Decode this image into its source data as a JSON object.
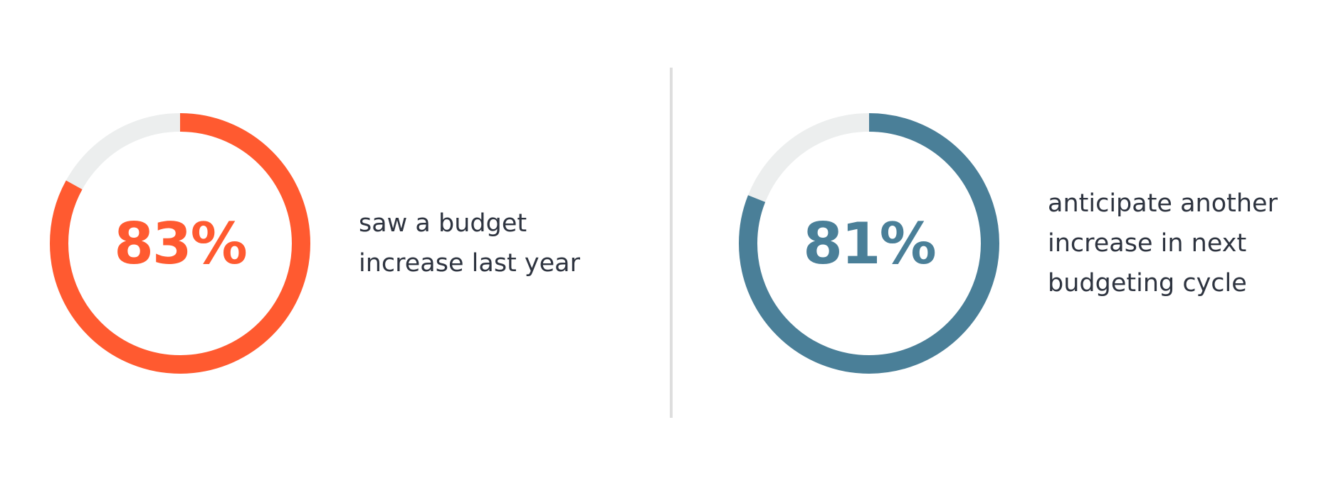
{
  "chart_data": [
    {
      "type": "pie",
      "variant": "donut",
      "value": 83,
      "max": 100,
      "value_label": "83%",
      "caption": [
        "saw a budget",
        "increase last year"
      ],
      "colors": {
        "filled": "#ff5a30",
        "track": "#eceeee"
      }
    },
    {
      "type": "pie",
      "variant": "donut",
      "value": 81,
      "max": 100,
      "value_label": "81%",
      "caption": [
        "anticipate another",
        "increase in next",
        "budgeting cycle"
      ],
      "colors": {
        "filled": "#4a7f98",
        "track": "#eceeee"
      }
    }
  ]
}
